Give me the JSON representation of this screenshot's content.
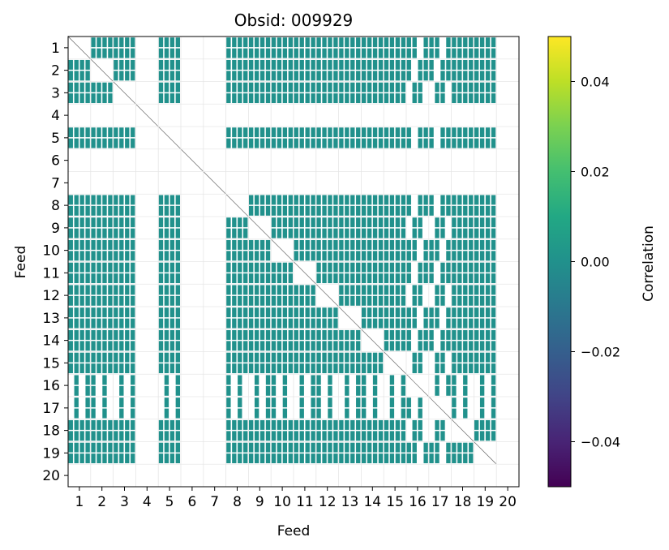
{
  "chart_data": {
    "type": "heatmap",
    "title": "Obsid: 009929",
    "xlabel": "Feed",
    "ylabel": "Feed",
    "x_ticks": [
      "1",
      "2",
      "3",
      "4",
      "5",
      "6",
      "7",
      "8",
      "9",
      "10",
      "11",
      "12",
      "13",
      "14",
      "15",
      "16",
      "17",
      "18",
      "19",
      "20"
    ],
    "y_ticks": [
      "1",
      "2",
      "3",
      "4",
      "5",
      "6",
      "7",
      "8",
      "9",
      "10",
      "11",
      "12",
      "13",
      "14",
      "15",
      "16",
      "17",
      "18",
      "19",
      "20"
    ],
    "colorbar": {
      "label": "Correlation",
      "colormap": "viridis",
      "vmin": -0.05,
      "vmax": 0.05,
      "ticks": [
        0.04,
        0.02,
        0.0,
        -0.02,
        -0.04
      ],
      "tick_labels": [
        "0.04",
        "0.02",
        "0.00",
        "−0.02",
        "−0.04"
      ]
    },
    "feed_count": 20,
    "flagged_feeds": [
      4,
      6,
      7,
      20
    ],
    "partially_flagged_feeds": [
      16,
      17
    ],
    "fill_value": 0.0,
    "fill_color": "#21918c",
    "grid": true
  }
}
